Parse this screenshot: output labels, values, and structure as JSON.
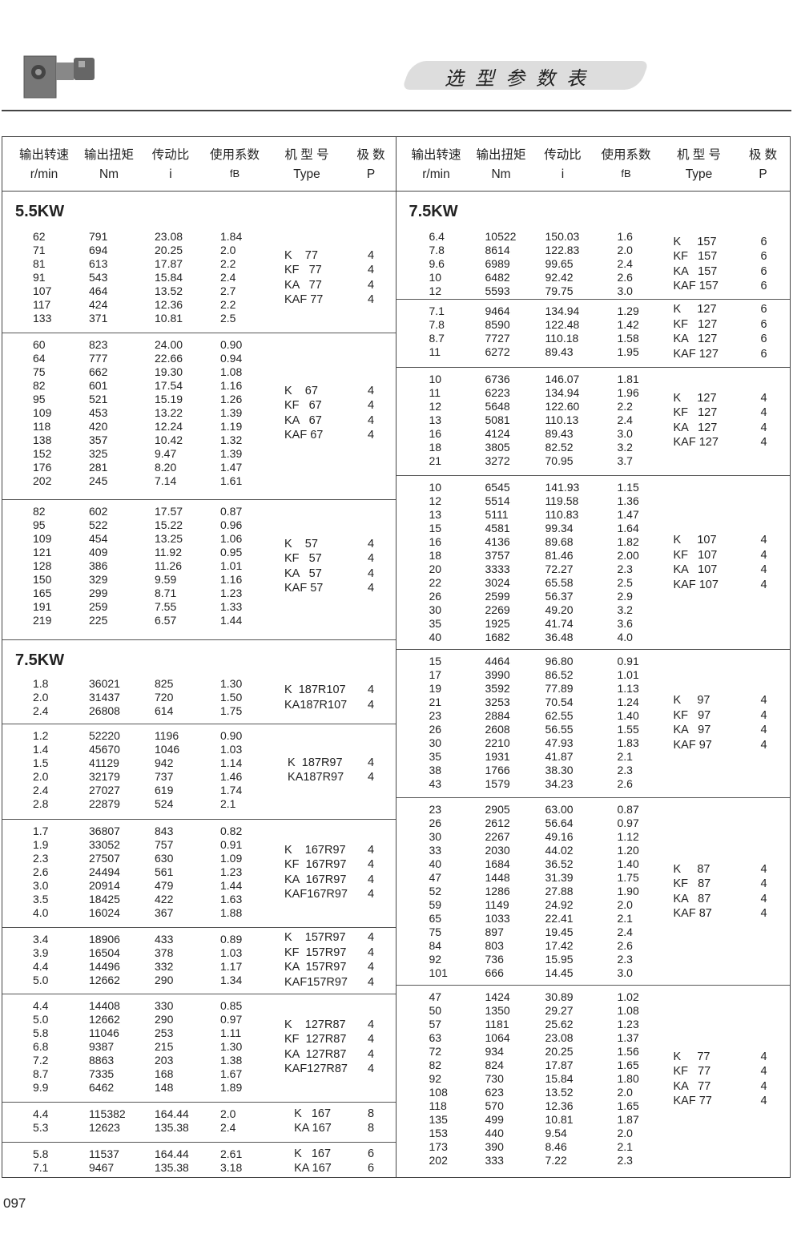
{
  "header": {
    "title": "选型参数表"
  },
  "columns_header": [
    {
      "cn": "输出转速",
      "en": "r/min"
    },
    {
      "cn": "输出扭矩",
      "en": "Nm"
    },
    {
      "cn": "传动比",
      "en": "i"
    },
    {
      "cn": "使用系数",
      "en": "fB"
    },
    {
      "cn": "机 型 号",
      "en": "Type"
    },
    {
      "cn": "极  数",
      "en": "P"
    }
  ],
  "left": [
    {
      "heading": "5.5KW",
      "rows": [
        [
          "62",
          "791",
          "23.08",
          "1.84"
        ],
        [
          "71",
          "694",
          "20.25",
          "2.0"
        ],
        [
          "81",
          "613",
          "17.87",
          "2.2"
        ],
        [
          "91",
          "543",
          "15.84",
          "2.4"
        ],
        [
          "107",
          "464",
          "13.52",
          "2.7"
        ],
        [
          "117",
          "424",
          "12.36",
          "2.2"
        ],
        [
          "133",
          "371",
          "10.81",
          "2.5"
        ]
      ],
      "types": [
        [
          "K    77",
          "4"
        ],
        [
          "KF   77",
          "4"
        ],
        [
          "KA   77",
          "4"
        ],
        [
          "KAF 77",
          "4"
        ]
      ]
    },
    {
      "rows": [
        [
          "60",
          "823",
          "24.00",
          "0.90"
        ],
        [
          "64",
          "777",
          "22.66",
          "0.94"
        ],
        [
          "75",
          "662",
          "19.30",
          "1.08"
        ],
        [
          "82",
          "601",
          "17.54",
          "1.16"
        ],
        [
          "95",
          "521",
          "15.19",
          "1.26"
        ],
        [
          "109",
          "453",
          "13.22",
          "1.39"
        ],
        [
          "118",
          "420",
          "12.24",
          "1.19"
        ],
        [
          "138",
          "357",
          "10.42",
          "1.32"
        ],
        [
          "152",
          "325",
          "9.47",
          "1.39"
        ],
        [
          "176",
          "281",
          "8.20",
          "1.47"
        ],
        [
          "202",
          "245",
          "7.14",
          "1.61"
        ]
      ],
      "types": [
        [
          "K    67",
          "4"
        ],
        [
          "KF   67",
          "4"
        ],
        [
          "KA   67",
          "4"
        ],
        [
          "KAF 67",
          "4"
        ]
      ]
    },
    {
      "rows": [
        [
          "82",
          "602",
          "17.57",
          "0.87"
        ],
        [
          "95",
          "522",
          "15.22",
          "0.96"
        ],
        [
          "109",
          "454",
          "13.25",
          "1.06"
        ],
        [
          "121",
          "409",
          "11.92",
          "0.95"
        ],
        [
          "128",
          "386",
          "11.26",
          "1.01"
        ],
        [
          "150",
          "329",
          "9.59",
          "1.16"
        ],
        [
          "165",
          "299",
          "8.71",
          "1.23"
        ],
        [
          "191",
          "259",
          "7.55",
          "1.33"
        ],
        [
          "219",
          "225",
          "6.57",
          "1.44"
        ]
      ],
      "types": [
        [
          "K    57",
          "4"
        ],
        [
          "KF   57",
          "4"
        ],
        [
          "KA   57",
          "4"
        ],
        [
          "KAF 57",
          "4"
        ]
      ]
    },
    {
      "heading": "7.5KW",
      "rows": [
        [
          "1.8",
          "36021",
          "825",
          "1.30"
        ],
        [
          "2.0",
          "31437",
          "720",
          "1.50"
        ],
        [
          "2.4",
          "26808",
          "614",
          "1.75"
        ]
      ],
      "types": [
        [
          "K  187R107",
          "4"
        ],
        [
          "KA187R107",
          "4"
        ]
      ]
    },
    {
      "rows": [
        [
          "1.2",
          "52220",
          "1196",
          "0.90"
        ],
        [
          "1.4",
          "45670",
          "1046",
          "1.03"
        ],
        [
          "1.5",
          "41129",
          "942",
          "1.14"
        ],
        [
          "2.0",
          "32179",
          "737",
          "1.46"
        ],
        [
          "2.4",
          "27027",
          "619",
          "1.74"
        ],
        [
          "2.8",
          "22879",
          "524",
          "2.1"
        ]
      ],
      "types": [
        [
          " K  187R97",
          "4"
        ],
        [
          " KA187R97",
          "4"
        ]
      ]
    },
    {
      "rows": [
        [
          "1.7",
          "36807",
          "843",
          "0.82"
        ],
        [
          "1.9",
          "33052",
          "757",
          "0.91"
        ],
        [
          "2.3",
          "27507",
          "630",
          "1.09"
        ],
        [
          "2.6",
          "24494",
          "561",
          "1.23"
        ],
        [
          "3.0",
          "20914",
          "479",
          "1.44"
        ],
        [
          "3.5",
          "18425",
          "422",
          "1.63"
        ],
        [
          "4.0",
          "16024",
          "367",
          "1.88"
        ]
      ],
      "types": [
        [
          "K    167R97",
          "4"
        ],
        [
          "KF  167R97",
          "4"
        ],
        [
          "KA  167R97",
          "4"
        ],
        [
          "KAF167R97",
          "4"
        ]
      ]
    },
    {
      "rows": [
        [
          "3.4",
          "18906",
          "433",
          "0.89"
        ],
        [
          "3.9",
          "16504",
          "378",
          "1.03"
        ],
        [
          "4.4",
          "14496",
          "332",
          "1.17"
        ],
        [
          "5.0",
          "12662",
          "290",
          "1.34"
        ]
      ],
      "types": [
        [
          "K    157R97",
          "4"
        ],
        [
          "KF  157R97",
          "4"
        ],
        [
          "KA  157R97",
          "4"
        ],
        [
          "KAF157R97",
          "4"
        ]
      ]
    },
    {
      "rows": [
        [
          "4.4",
          "14408",
          "330",
          "0.85"
        ],
        [
          "5.0",
          "12662",
          "290",
          "0.97"
        ],
        [
          "5.8",
          "11046",
          "253",
          "1.11"
        ],
        [
          "6.8",
          "9387",
          "215",
          "1.30"
        ],
        [
          "7.2",
          "8863",
          "203",
          "1.38"
        ],
        [
          "8.7",
          "7335",
          "168",
          "1.67"
        ],
        [
          "9.9",
          "6462",
          "148",
          "1.89"
        ]
      ],
      "types": [
        [
          "K    127R87",
          "4"
        ],
        [
          "KF  127R87",
          "4"
        ],
        [
          "KA  127R87",
          "4"
        ],
        [
          "KAF127R87",
          "4"
        ]
      ]
    },
    {
      "rows": [
        [
          "4.4",
          "115382",
          "164.44",
          "2.0"
        ],
        [
          "5.3",
          "12623",
          "135.38",
          "2.4"
        ]
      ],
      "types": [
        [
          "   K   167",
          "8"
        ],
        [
          "   KA 167",
          "8"
        ]
      ]
    },
    {
      "rows": [
        [
          "5.8",
          "11537",
          "164.44",
          "2.61"
        ],
        [
          "7.1",
          "9467",
          "135.38",
          "3.18"
        ]
      ],
      "types": [
        [
          "   K   167",
          "6"
        ],
        [
          "   KA 167",
          "6"
        ]
      ]
    }
  ],
  "right": [
    {
      "heading": "7.5KW",
      "rows": [
        [
          "6.4",
          "10522",
          "150.03",
          "1.6"
        ],
        [
          "7.8",
          "8614",
          "122.83",
          "2.0"
        ],
        [
          "9.6",
          "6989",
          "99.65",
          "2.4"
        ],
        [
          "10",
          "6482",
          "92.42",
          "2.6"
        ],
        [
          "12",
          "5593",
          "79.75",
          "3.0"
        ]
      ],
      "types": [
        [
          "K     157",
          "6"
        ],
        [
          "KF   157",
          "6"
        ],
        [
          "KA   157",
          "6"
        ],
        [
          "KAF 157",
          "6"
        ]
      ]
    },
    {
      "rows": [
        [
          "7.1",
          "9464",
          "134.94",
          "1.29"
        ],
        [
          "7.8",
          "8590",
          "122.48",
          "1.42"
        ],
        [
          "8.7",
          "7727",
          "110.18",
          "1.58"
        ],
        [
          "11",
          "6272",
          "89.43",
          "1.95"
        ]
      ],
      "types": [
        [
          "K     127",
          "6"
        ],
        [
          "KF   127",
          "6"
        ],
        [
          "KA   127",
          "6"
        ],
        [
          "KAF 127",
          "6"
        ]
      ]
    },
    {
      "rows": [
        [
          "10",
          "6736",
          "146.07",
          "1.81"
        ],
        [
          "11",
          "6223",
          "134.94",
          "1.96"
        ],
        [
          "12",
          "5648",
          "122.60",
          "2.2"
        ],
        [
          "13",
          "5081",
          "110.13",
          "2.4"
        ],
        [
          "16",
          "4124",
          "89.43",
          "3.0"
        ],
        [
          "18",
          "3805",
          "82.52",
          "3.2"
        ],
        [
          "21",
          "3272",
          "70.95",
          "3.7"
        ]
      ],
      "types": [
        [
          "K     127",
          "4"
        ],
        [
          "KF   127",
          "4"
        ],
        [
          "KA   127",
          "4"
        ],
        [
          "KAF 127",
          "4"
        ]
      ]
    },
    {
      "rows": [
        [
          "10",
          "6545",
          "141.93",
          "1.15"
        ],
        [
          "12",
          "5514",
          "119.58",
          "1.36"
        ],
        [
          "13",
          "5111",
          "110.83",
          "1.47"
        ],
        [
          "15",
          "4581",
          "99.34",
          "1.64"
        ],
        [
          "16",
          "4136",
          "89.68",
          "1.82"
        ],
        [
          "18",
          "3757",
          "81.46",
          "2.00"
        ],
        [
          "20",
          "3333",
          "72.27",
          "2.3"
        ],
        [
          "22",
          "3024",
          "65.58",
          "2.5"
        ],
        [
          "26",
          "2599",
          "56.37",
          "2.9"
        ],
        [
          "30",
          "2269",
          "49.20",
          "3.2"
        ],
        [
          "35",
          "1925",
          "41.74",
          "3.6"
        ],
        [
          "40",
          "1682",
          "36.48",
          "4.0"
        ]
      ],
      "types": [
        [
          "K     107",
          "4"
        ],
        [
          "KF   107",
          "4"
        ],
        [
          "KA   107",
          "4"
        ],
        [
          "KAF 107",
          "4"
        ]
      ]
    },
    {
      "rows": [
        [
          "15",
          "4464",
          "96.80",
          "0.91"
        ],
        [
          "17",
          "3990",
          "86.52",
          "1.01"
        ],
        [
          "19",
          "3592",
          "77.89",
          "1.13"
        ],
        [
          "21",
          "3253",
          "70.54",
          "1.24"
        ],
        [
          "23",
          "2884",
          "62.55",
          "1.40"
        ],
        [
          "26",
          "2608",
          "56.55",
          "1.55"
        ],
        [
          "30",
          "2210",
          "47.93",
          "1.83"
        ],
        [
          "35",
          "1931",
          "41.87",
          "2.1"
        ],
        [
          "38",
          "1766",
          "38.30",
          "2.3"
        ],
        [
          "43",
          "1579",
          "34.23",
          "2.6"
        ]
      ],
      "types": [
        [
          "K     97",
          "4"
        ],
        [
          "KF   97",
          "4"
        ],
        [
          "KA   97",
          "4"
        ],
        [
          "KAF 97",
          "4"
        ]
      ]
    },
    {
      "rows": [
        [
          "23",
          "2905",
          "63.00",
          "0.87"
        ],
        [
          "26",
          "2612",
          "56.64",
          "0.97"
        ],
        [
          "30",
          "2267",
          "49.16",
          "1.12"
        ],
        [
          "33",
          "2030",
          "44.02",
          "1.20"
        ],
        [
          "40",
          "1684",
          "36.52",
          "1.40"
        ],
        [
          "47",
          "1448",
          "31.39",
          "1.75"
        ],
        [
          "52",
          "1286",
          "27.88",
          "1.90"
        ],
        [
          "59",
          "1149",
          "24.92",
          "2.0"
        ],
        [
          "65",
          "1033",
          "22.41",
          "2.1"
        ],
        [
          "75",
          "897",
          "19.45",
          "2.4"
        ],
        [
          "84",
          "803",
          "17.42",
          "2.6"
        ],
        [
          "92",
          "736",
          "15.95",
          "2.3"
        ],
        [
          "101",
          "666",
          "14.45",
          "3.0"
        ]
      ],
      "types": [
        [
          "K     87",
          "4"
        ],
        [
          "KF   87",
          "4"
        ],
        [
          "KA   87",
          "4"
        ],
        [
          "KAF 87",
          "4"
        ]
      ]
    },
    {
      "rows": [
        [
          "47",
          "1424",
          "30.89",
          "1.02"
        ],
        [
          "50",
          "1350",
          "29.27",
          "1.08"
        ],
        [
          "57",
          "1181",
          "25.62",
          "1.23"
        ],
        [
          "63",
          "1064",
          "23.08",
          "1.37"
        ],
        [
          "72",
          "934",
          "20.25",
          "1.56"
        ],
        [
          "82",
          "824",
          "17.87",
          "1.65"
        ],
        [
          "92",
          "730",
          "15.84",
          "1.80"
        ],
        [
          "108",
          "623",
          "13.52",
          "2.0"
        ],
        [
          "118",
          "570",
          "12.36",
          "1.65"
        ],
        [
          "135",
          "499",
          "10.81",
          "1.87"
        ],
        [
          "153",
          "440",
          "9.54",
          "2.0"
        ],
        [
          "173",
          "390",
          "8.46",
          "2.1"
        ],
        [
          "202",
          "333",
          "7.22",
          "2.3"
        ]
      ],
      "types": [
        [
          "K     77",
          "4"
        ],
        [
          "KF   77",
          "4"
        ],
        [
          "KA   77",
          "4"
        ],
        [
          "KAF 77",
          "4"
        ]
      ]
    }
  ],
  "page_number": "097"
}
